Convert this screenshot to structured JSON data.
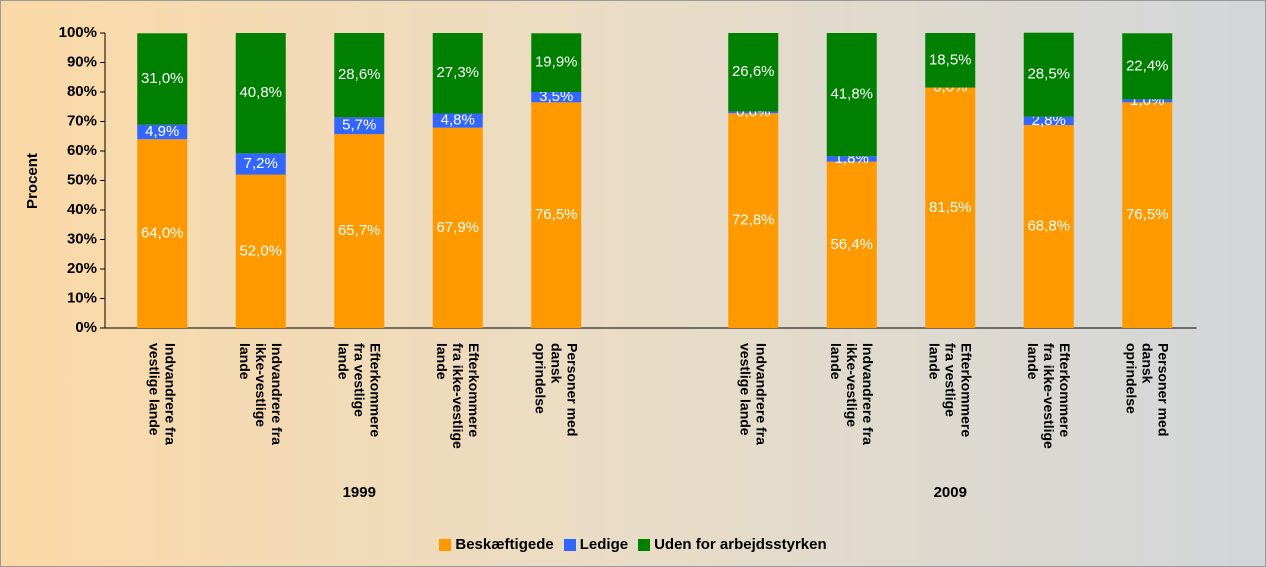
{
  "chart_data": {
    "type": "stacked_bar",
    "y_label": "Procent",
    "categories": [
      "Indvandrere fra vestlige lande",
      "Indvandrere fra ikke-vestlige lande",
      "Efterkommere fra vestlige lande",
      "Efterkommere fra ikke-vestlige lande",
      "Personer med dansk oprindelse",
      null,
      "Indvandrere fra vestlige lande",
      "Indvandrere fra ikke-vestlige lande",
      "Efterkommere fra vestlige lande",
      "Efterkommere fra ikke-vestlige lande",
      "Personer med dansk oprindelse"
    ],
    "groups": [
      "1999",
      "2009"
    ],
    "series": [
      {
        "name": "Beskæftigede",
        "color": "#ff9900",
        "values": [
          64.0,
          52.0,
          65.7,
          67.9,
          76.5,
          null,
          72.8,
          56.4,
          81.5,
          68.8,
          76.5
        ],
        "value_labels": [
          "64,0%",
          "52,0%",
          "65,7%",
          "67,9%",
          "76,5%",
          null,
          "72,8%",
          "56,4%",
          "81,5%",
          "68,8%",
          "76,5%"
        ]
      },
      {
        "name": "Ledige",
        "color": "#3366ff",
        "values": [
          4.9,
          7.2,
          5.7,
          4.8,
          3.5,
          null,
          0.6,
          1.8,
          0.0,
          2.8,
          1.0
        ],
        "value_labels": [
          "4,9%",
          "7,2%",
          "5,7%",
          "4,8%",
          "3,5%",
          null,
          "0,6%",
          "1,8%",
          "0,0%",
          "2,8%",
          "1,0%"
        ]
      },
      {
        "name": "Uden for arbejdsstyrken",
        "color": "#008000",
        "values": [
          31.0,
          40.8,
          28.6,
          27.3,
          19.9,
          null,
          26.6,
          41.8,
          18.5,
          28.5,
          22.4
        ],
        "value_labels": [
          "31,0%",
          "40,8%",
          "28,6%",
          "27,3%",
          "19,9%",
          null,
          "26,6%",
          "41,8%",
          "18,5%",
          "28,5%",
          "22,4%"
        ]
      }
    ],
    "ylim": [
      0,
      100
    ],
    "yticks": [
      {
        "value": 0,
        "label": "0%"
      },
      {
        "value": 10,
        "label": "10%"
      },
      {
        "value": 20,
        "label": "20%"
      },
      {
        "value": 30,
        "label": "30%"
      },
      {
        "value": 40,
        "label": "40%"
      },
      {
        "value": 50,
        "label": "50%"
      },
      {
        "value": 60,
        "label": "60%"
      },
      {
        "value": 70,
        "label": "70%"
      },
      {
        "value": 80,
        "label": "80%"
      },
      {
        "value": 90,
        "label": "90%"
      },
      {
        "value": 100,
        "label": "100%"
      }
    ],
    "legend": "bottom"
  }
}
